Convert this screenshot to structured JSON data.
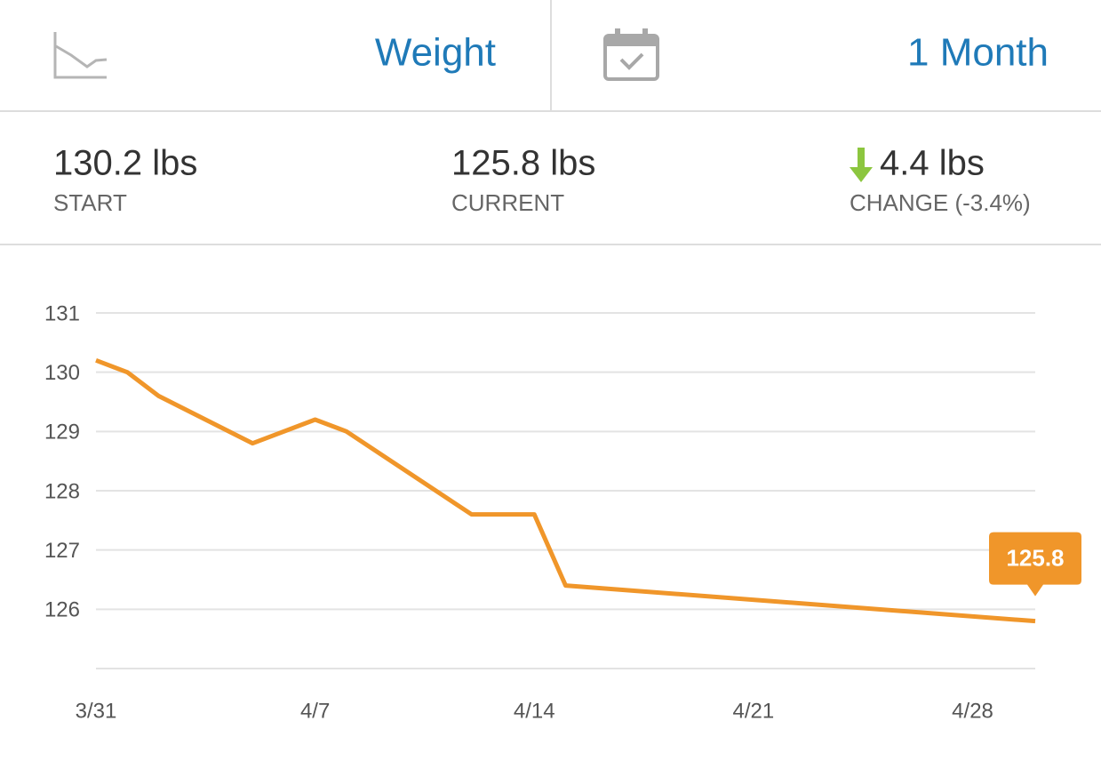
{
  "header": {
    "metric": "Weight",
    "period": "1 Month"
  },
  "stats": [
    {
      "value": "130.2 lbs",
      "label": "START"
    },
    {
      "value": "125.8 lbs",
      "label": "CURRENT"
    },
    {
      "value": "4.4 lbs",
      "label": "CHANGE (-3.4%)"
    }
  ],
  "chart_data": {
    "type": "line",
    "x": [
      0,
      1,
      2,
      5,
      7,
      8,
      12,
      14,
      15,
      30
    ],
    "series": [
      {
        "name": "Weight",
        "color": "#f0962a",
        "values": [
          130.2,
          130.0,
          129.6,
          128.8,
          129.2,
          129.0,
          127.6,
          127.6,
          126.4,
          125.8
        ]
      }
    ],
    "xlim": [
      0,
      30
    ],
    "xticks": [
      {
        "value": 0,
        "label": "3/31"
      },
      {
        "value": 7,
        "label": "4/7"
      },
      {
        "value": 14,
        "label": "4/14"
      },
      {
        "value": 21,
        "label": "4/21"
      },
      {
        "value": 28,
        "label": "4/28"
      }
    ],
    "ylim": [
      125,
      131
    ],
    "yticks": [
      126,
      127,
      128,
      129,
      130,
      131
    ],
    "grid": true
  }
}
